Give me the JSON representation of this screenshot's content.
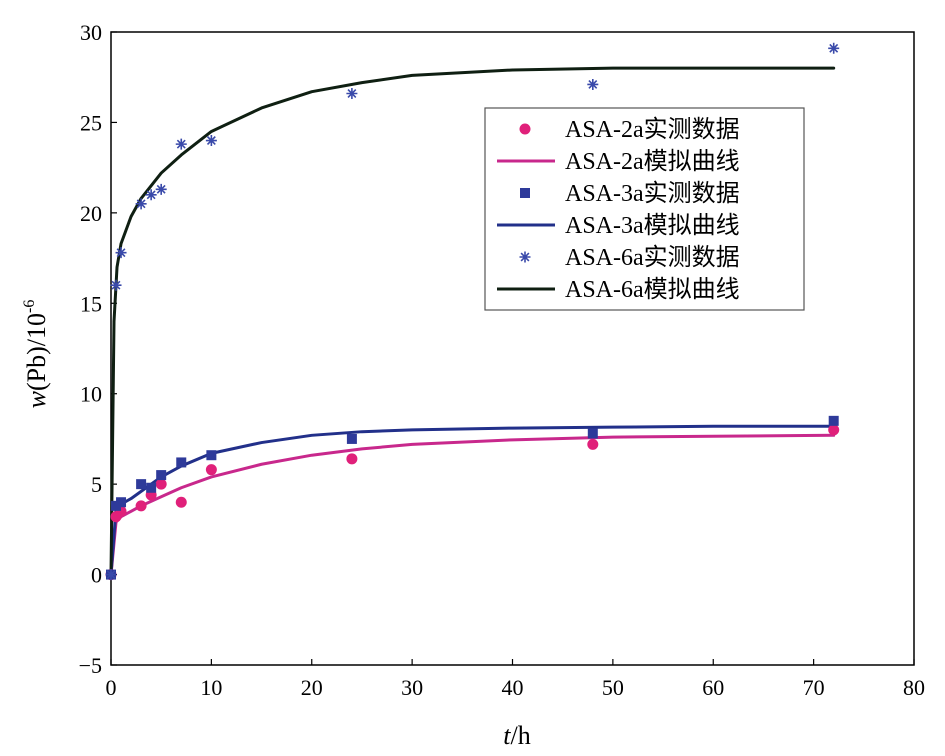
{
  "chart_data": {
    "type": "scatter",
    "title": "",
    "xlabel": {
      "var": "t",
      "unit": "/h"
    },
    "ylabel": {
      "var": "w",
      "paren": "(Pb)/10",
      "sup": "-6"
    },
    "xlim": [
      0,
      80
    ],
    "ylim": [
      -5,
      30
    ],
    "xticks": [
      0,
      10,
      20,
      30,
      40,
      50,
      60,
      70,
      80
    ],
    "yticks": [
      -5,
      0,
      5,
      10,
      15,
      20,
      25,
      30
    ],
    "grid": false,
    "legend_position": "top-right",
    "series": [
      {
        "name": "ASA-2a实测数据",
        "kind": "points",
        "marker": "circle",
        "color": "#e0207a",
        "x": [
          0,
          0.5,
          1,
          3,
          4,
          5,
          7,
          10,
          24,
          48,
          72
        ],
        "y": [
          0,
          3.2,
          3.5,
          3.8,
          4.4,
          5.0,
          4.0,
          5.8,
          6.4,
          7.2,
          8.0
        ]
      },
      {
        "name": "ASA-2a模拟曲线",
        "kind": "line",
        "color": "#c8288c",
        "x": [
          0,
          0.5,
          1,
          2,
          3,
          5,
          7,
          10,
          15,
          20,
          25,
          30,
          40,
          50,
          60,
          72
        ],
        "y": [
          0,
          2.9,
          3.2,
          3.5,
          3.8,
          4.3,
          4.8,
          5.4,
          6.1,
          6.6,
          6.95,
          7.2,
          7.45,
          7.6,
          7.65,
          7.7
        ]
      },
      {
        "name": "ASA-3a实测数据",
        "kind": "points",
        "marker": "square",
        "color": "#2e3a9a",
        "x": [
          0,
          0.5,
          1,
          3,
          4,
          5,
          7,
          10,
          24,
          48,
          72
        ],
        "y": [
          0,
          3.8,
          4.0,
          5.0,
          4.8,
          5.5,
          6.2,
          6.6,
          7.5,
          7.8,
          8.5
        ]
      },
      {
        "name": "ASA-3a模拟曲线",
        "kind": "line",
        "color": "#22308a",
        "x": [
          0,
          0.5,
          1,
          2,
          3,
          5,
          7,
          10,
          15,
          20,
          25,
          30,
          40,
          50,
          60,
          72
        ],
        "y": [
          0,
          3.6,
          3.9,
          4.2,
          4.6,
          5.4,
          6.0,
          6.7,
          7.3,
          7.7,
          7.9,
          8.0,
          8.1,
          8.15,
          8.2,
          8.2
        ]
      },
      {
        "name": "ASA-6a实测数据",
        "kind": "points",
        "marker": "star",
        "color": "#3a4aaa",
        "x": [
          0,
          0.5,
          1,
          3,
          4,
          5,
          7,
          10,
          24,
          48,
          72
        ],
        "y": [
          0,
          16.0,
          17.8,
          20.5,
          21.0,
          21.3,
          23.8,
          24.0,
          26.6,
          27.1,
          29.1
        ]
      },
      {
        "name": "ASA-6a模拟曲线",
        "kind": "line",
        "color": "#0f1f12",
        "x": [
          0,
          0.3,
          0.6,
          1,
          2,
          3,
          5,
          7,
          10,
          15,
          20,
          25,
          30,
          40,
          50,
          60,
          72
        ],
        "y": [
          0,
          14.0,
          17.0,
          18.3,
          19.8,
          20.8,
          22.2,
          23.2,
          24.5,
          25.8,
          26.7,
          27.2,
          27.6,
          27.9,
          28.0,
          28.0,
          28.0
        ]
      }
    ]
  }
}
